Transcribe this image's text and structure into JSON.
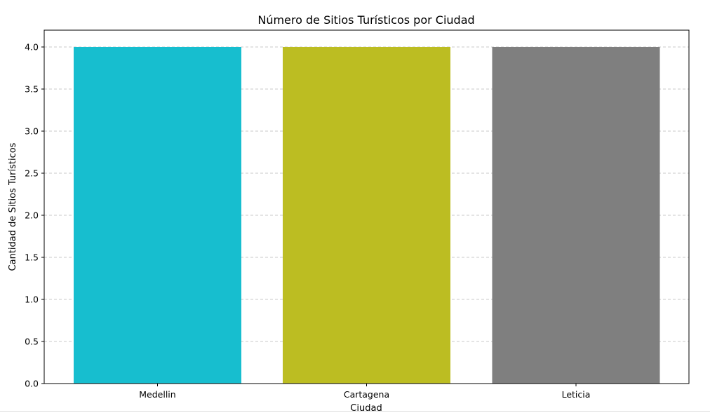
{
  "chart_data": {
    "type": "bar",
    "title": "Número de Sitios Turísticos por Ciudad",
    "xlabel": "Ciudad",
    "ylabel": "Cantidad de Sitios Turísticos",
    "categories": [
      "Medellin",
      "Cartagena",
      "Leticia"
    ],
    "values": [
      4,
      4,
      4
    ],
    "colors": [
      "#17becf",
      "#bcbd22",
      "#7f7f7f"
    ],
    "ylim": [
      0,
      4.2
    ],
    "yticks": [
      "0.0",
      "0.5",
      "1.0",
      "1.5",
      "2.0",
      "2.5",
      "3.0",
      "3.5",
      "4.0"
    ],
    "grid": "y-dashed",
    "legend": "none"
  }
}
